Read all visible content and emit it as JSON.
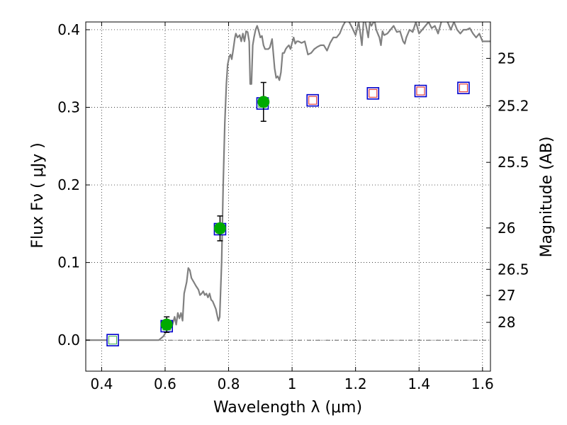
{
  "chart_data": {
    "type": "scatter",
    "xlabel": "Wavelength λ (μm)",
    "ylabel": "Flux  Fν  ( μJy )",
    "y2label": "Magnitude (AB)",
    "xlim": [
      0.35,
      1.625
    ],
    "ylim": [
      -0.04,
      0.41
    ],
    "x_ticks": [
      0.4,
      0.6,
      0.8,
      1.0,
      1.2,
      1.4,
      1.6
    ],
    "x_tick_labels": [
      "0.4",
      "0.6",
      "0.8",
      "1",
      "1.2",
      "1.4",
      "1.6"
    ],
    "y_ticks": [
      0.0,
      0.1,
      0.2,
      0.3,
      0.4
    ],
    "y_tick_labels": [
      "0.0",
      "0.1",
      "0.2",
      "0.3",
      "0.4"
    ],
    "mag_ticks": [
      25,
      25.2,
      25.5,
      26,
      26.5,
      27,
      28
    ],
    "mag_tick_labels": [
      "25",
      "25.2",
      "25.5",
      "26",
      "26.5",
      "27",
      "28"
    ],
    "grid": true,
    "zero_line": true,
    "series": [
      {
        "kind": "line",
        "color": "#808080",
        "points": [
          [
            0.35,
            0.0
          ],
          [
            0.58,
            0.0
          ],
          [
            0.595,
            0.005
          ],
          [
            0.605,
            0.012
          ],
          [
            0.62,
            0.015
          ],
          [
            0.63,
            0.03
          ],
          [
            0.635,
            0.02
          ],
          [
            0.64,
            0.035
          ],
          [
            0.645,
            0.028
          ],
          [
            0.65,
            0.035
          ],
          [
            0.655,
            0.025
          ],
          [
            0.66,
            0.06
          ],
          [
            0.668,
            0.075
          ],
          [
            0.673,
            0.093
          ],
          [
            0.678,
            0.09
          ],
          [
            0.683,
            0.08
          ],
          [
            0.69,
            0.075
          ],
          [
            0.697,
            0.07
          ],
          [
            0.705,
            0.065
          ],
          [
            0.71,
            0.058
          ],
          [
            0.715,
            0.06
          ],
          [
            0.72,
            0.063
          ],
          [
            0.725,
            0.058
          ],
          [
            0.73,
            0.06
          ],
          [
            0.735,
            0.055
          ],
          [
            0.74,
            0.06
          ],
          [
            0.745,
            0.052
          ],
          [
            0.75,
            0.05
          ],
          [
            0.755,
            0.045
          ],
          [
            0.76,
            0.04
          ],
          [
            0.765,
            0.03
          ],
          [
            0.768,
            0.025
          ],
          [
            0.772,
            0.03
          ],
          [
            0.778,
            0.1
          ],
          [
            0.783,
            0.2
          ],
          [
            0.788,
            0.28
          ],
          [
            0.793,
            0.33
          ],
          [
            0.797,
            0.355
          ],
          [
            0.802,
            0.365
          ],
          [
            0.806,
            0.368
          ],
          [
            0.81,
            0.362
          ],
          [
            0.815,
            0.375
          ],
          [
            0.82,
            0.39
          ],
          [
            0.823,
            0.395
          ],
          [
            0.828,
            0.39
          ],
          [
            0.835,
            0.393
          ],
          [
            0.84,
            0.385
          ],
          [
            0.845,
            0.395
          ],
          [
            0.85,
            0.385
          ],
          [
            0.855,
            0.398
          ],
          [
            0.86,
            0.397
          ],
          [
            0.865,
            0.385
          ],
          [
            0.868,
            0.33
          ],
          [
            0.872,
            0.33
          ],
          [
            0.876,
            0.38
          ],
          [
            0.88,
            0.39
          ],
          [
            0.885,
            0.4
          ],
          [
            0.89,
            0.405
          ],
          [
            0.895,
            0.398
          ],
          [
            0.9,
            0.39
          ],
          [
            0.905,
            0.392
          ],
          [
            0.91,
            0.38
          ],
          [
            0.915,
            0.375
          ],
          [
            0.925,
            0.375
          ],
          [
            0.93,
            0.377
          ],
          [
            0.937,
            0.388
          ],
          [
            0.945,
            0.35
          ],
          [
            0.95,
            0.338
          ],
          [
            0.955,
            0.34
          ],
          [
            0.96,
            0.335
          ],
          [
            0.965,
            0.345
          ],
          [
            0.97,
            0.37
          ],
          [
            0.975,
            0.37
          ],
          [
            0.98,
            0.375
          ],
          [
            0.985,
            0.378
          ],
          [
            0.99,
            0.38
          ],
          [
            0.995,
            0.375
          ],
          [
            1.0,
            0.383
          ],
          [
            1.005,
            0.39
          ],
          [
            1.01,
            0.382
          ],
          [
            1.015,
            0.385
          ],
          [
            1.02,
            0.385
          ],
          [
            1.03,
            0.383
          ],
          [
            1.04,
            0.385
          ],
          [
            1.05,
            0.368
          ],
          [
            1.06,
            0.37
          ],
          [
            1.07,
            0.375
          ],
          [
            1.08,
            0.378
          ],
          [
            1.09,
            0.38
          ],
          [
            1.1,
            0.38
          ],
          [
            1.11,
            0.373
          ],
          [
            1.12,
            0.383
          ],
          [
            1.13,
            0.39
          ],
          [
            1.14,
            0.39
          ],
          [
            1.15,
            0.395
          ],
          [
            1.16,
            0.405
          ],
          [
            1.17,
            0.412
          ],
          [
            1.18,
            0.41
          ],
          [
            1.19,
            0.402
          ],
          [
            1.2,
            0.393
          ],
          [
            1.21,
            0.41
          ],
          [
            1.215,
            0.395
          ],
          [
            1.22,
            0.38
          ],
          [
            1.225,
            0.41
          ],
          [
            1.23,
            0.412
          ],
          [
            1.24,
            0.39
          ],
          [
            1.245,
            0.41
          ],
          [
            1.25,
            0.405
          ],
          [
            1.26,
            0.412
          ],
          [
            1.265,
            0.4
          ],
          [
            1.27,
            0.395
          ],
          [
            1.275,
            0.39
          ],
          [
            1.28,
            0.38
          ],
          [
            1.285,
            0.398
          ],
          [
            1.29,
            0.393
          ],
          [
            1.3,
            0.395
          ],
          [
            1.31,
            0.4
          ],
          [
            1.32,
            0.405
          ],
          [
            1.33,
            0.397
          ],
          [
            1.34,
            0.398
          ],
          [
            1.35,
            0.385
          ],
          [
            1.355,
            0.382
          ],
          [
            1.36,
            0.39
          ],
          [
            1.37,
            0.4
          ],
          [
            1.38,
            0.397
          ],
          [
            1.39,
            0.41
          ],
          [
            1.4,
            0.395
          ],
          [
            1.41,
            0.4
          ],
          [
            1.42,
            0.405
          ],
          [
            1.43,
            0.41
          ],
          [
            1.44,
            0.402
          ],
          [
            1.45,
            0.405
          ],
          [
            1.46,
            0.395
          ],
          [
            1.47,
            0.41
          ],
          [
            1.48,
            0.412
          ],
          [
            1.49,
            0.41
          ],
          [
            1.5,
            0.4
          ],
          [
            1.51,
            0.41
          ],
          [
            1.52,
            0.4
          ],
          [
            1.53,
            0.395
          ],
          [
            1.54,
            0.4
          ],
          [
            1.55,
            0.4
          ],
          [
            1.56,
            0.402
          ],
          [
            1.57,
            0.395
          ],
          [
            1.58,
            0.39
          ],
          [
            1.59,
            0.395
          ],
          [
            1.6,
            0.385
          ],
          [
            1.61,
            0.385
          ],
          [
            1.625,
            0.385
          ]
        ]
      },
      {
        "kind": "square",
        "edge": "#0000cc",
        "face": "#ffffff",
        "inner_edge": "#3cb043",
        "x": [
          0.435,
          0.605,
          0.773,
          0.907
        ],
        "y": [
          0.0,
          0.018,
          0.143,
          0.305
        ]
      },
      {
        "kind": "square",
        "edge": "#0000cc",
        "face": "#ffffff",
        "inner_edge": "#dd2222",
        "x": [
          1.065,
          1.255,
          1.405,
          1.54
        ],
        "y": [
          0.309,
          0.318,
          0.321,
          0.325
        ]
      },
      {
        "kind": "circle",
        "color": "#00aa00",
        "x": [
          0.605,
          0.773,
          0.91
        ],
        "y": [
          0.02,
          0.144,
          0.307
        ],
        "yerr": [
          0.01,
          0.016,
          0.025
        ]
      }
    ]
  }
}
